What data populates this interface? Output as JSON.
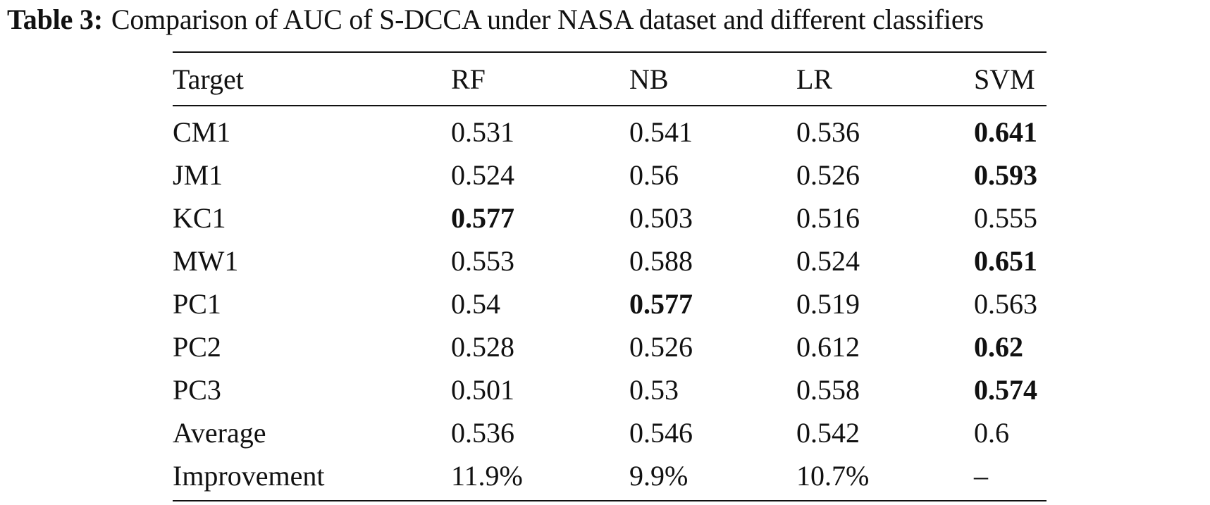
{
  "caption": {
    "label": "Table 3:",
    "text": "Comparison of AUC of S-DCCA under NASA dataset and different classifiers"
  },
  "table": {
    "headers": [
      "Target",
      "RF",
      "NB",
      "LR",
      "SVM"
    ],
    "rows": [
      {
        "cells": [
          "CM1",
          "0.531",
          "0.541",
          "0.536",
          "0.641"
        ],
        "bold_col": 4
      },
      {
        "cells": [
          "JM1",
          "0.524",
          "0.56",
          "0.526",
          "0.593"
        ],
        "bold_col": 4
      },
      {
        "cells": [
          "KC1",
          "0.577",
          "0.503",
          "0.516",
          "0.555"
        ],
        "bold_col": 1
      },
      {
        "cells": [
          "MW1",
          "0.553",
          "0.588",
          "0.524",
          "0.651"
        ],
        "bold_col": 4
      },
      {
        "cells": [
          "PC1",
          "0.54",
          "0.577",
          "0.519",
          "0.563"
        ],
        "bold_col": 2
      },
      {
        "cells": [
          "PC2",
          "0.528",
          "0.526",
          "0.612",
          "0.62"
        ],
        "bold_col": 4
      },
      {
        "cells": [
          "PC3",
          "0.501",
          "0.53",
          "0.558",
          "0.574"
        ],
        "bold_col": 4
      },
      {
        "cells": [
          "Average",
          "0.536",
          "0.546",
          "0.542",
          "0.6"
        ],
        "bold_col": -1
      },
      {
        "cells": [
          "Improvement",
          "11.9%",
          "9.9%",
          "10.7%",
          "–"
        ],
        "bold_col": -1
      }
    ]
  }
}
